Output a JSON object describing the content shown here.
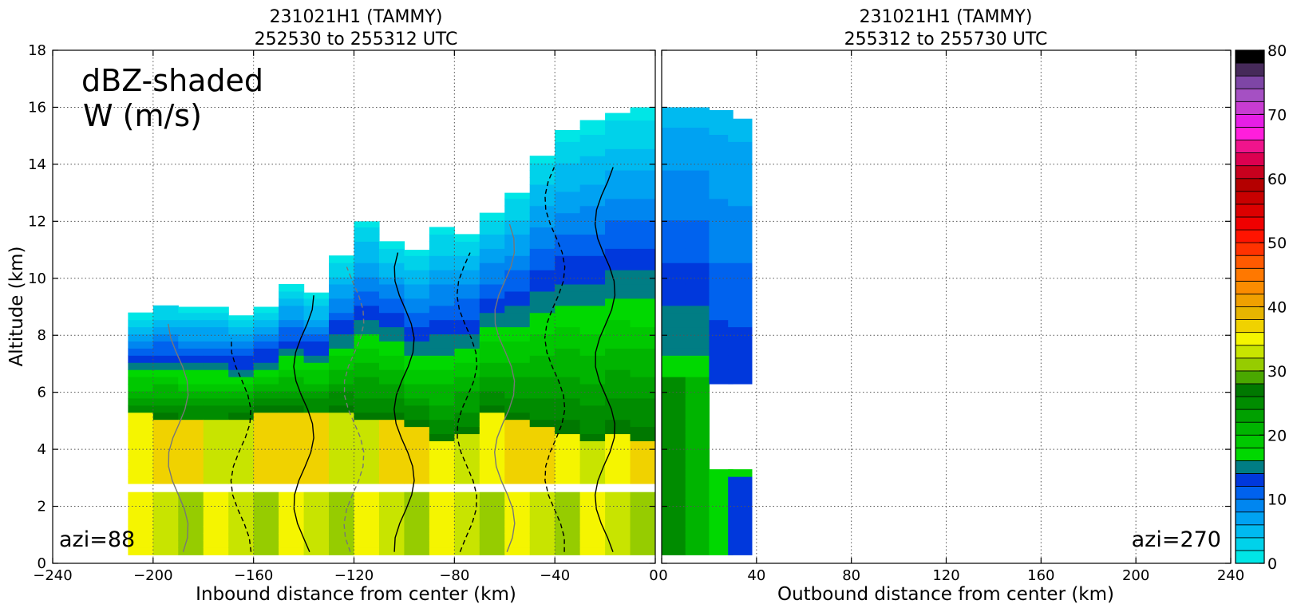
{
  "panels": [
    {
      "title_line1": "231021H1 (TAMMY)",
      "title_line2": "252530 to 255312 UTC",
      "xlabel": "Inbound distance from center (km)",
      "ylabel": "Altitude (km)",
      "azi_label": "azi=88",
      "annotation_line1": "dBZ-shaded",
      "annotation_line2": "W (m/s)"
    },
    {
      "title_line1": "231021H1 (TAMMY)",
      "title_line2": "255312 to 255730 UTC",
      "xlabel": "Outbound distance from center (km)",
      "azi_label": "azi=270"
    }
  ],
  "chart_data": [
    {
      "type": "heatmap",
      "title": "231021H1 (TAMMY) 252530 to 255312 UTC",
      "xlabel": "Inbound distance from center (km)",
      "ylabel": "Altitude (km)",
      "xlim": [
        -240,
        0
      ],
      "ylim": [
        0,
        18
      ],
      "xticks": [
        -240,
        -200,
        -160,
        -120,
        -80,
        -40,
        0
      ],
      "xtick_labels": [
        "−240",
        "−200",
        "−160",
        "−120",
        "−80",
        "−40",
        "0"
      ],
      "yticks": [
        0,
        2,
        4,
        6,
        8,
        10,
        12,
        14,
        16,
        18
      ],
      "grid": true,
      "contours": "W (m/s)",
      "contour_label": "1",
      "reflectivity_columns": [
        {
          "x": -205,
          "top": 8.8,
          "bright_top": 5.2
        },
        {
          "x": -195,
          "top": 9.1,
          "bright_top": 5.1
        },
        {
          "x": -185,
          "top": 9.0,
          "bright_top": 5.0
        },
        {
          "x": -175,
          "top": 9.0,
          "bright_top": 5.0
        },
        {
          "x": -165,
          "top": 8.7,
          "bright_top": 5.1
        },
        {
          "x": -155,
          "top": 9.0,
          "bright_top": 5.3
        },
        {
          "x": -145,
          "top": 9.8,
          "bright_top": 5.3
        },
        {
          "x": -135,
          "top": 9.5,
          "bright_top": 5.2
        },
        {
          "x": -125,
          "top": 10.8,
          "bright_top": 5.3
        },
        {
          "x": -115,
          "top": 12.0,
          "bright_top": 5.1
        },
        {
          "x": -105,
          "top": 11.4,
          "bright_top": 5.0
        },
        {
          "x": -95,
          "top": 11.0,
          "bright_top": 4.7
        },
        {
          "x": -85,
          "top": 11.8,
          "bright_top": 4.2
        },
        {
          "x": -75,
          "top": 11.6,
          "bright_top": 4.6
        },
        {
          "x": -65,
          "top": 12.4,
          "bright_top": 5.2
        },
        {
          "x": -55,
          "top": 13.0,
          "bright_top": 5.0
        },
        {
          "x": -45,
          "top": 14.3,
          "bright_top": 4.8
        },
        {
          "x": -35,
          "top": 15.2,
          "bright_top": 4.6
        },
        {
          "x": -25,
          "top": 15.6,
          "bright_top": 4.2
        },
        {
          "x": -15,
          "top": 15.9,
          "bright_top": 4.5
        },
        {
          "x": -5,
          "top": 16.0,
          "bright_top": 4.4
        }
      ],
      "data_gap_altitude_km": [
        2.5,
        2.75
      ],
      "echo_bottom_upper_km": 2.75,
      "echo_top_lower_km": 2.5
    },
    {
      "type": "heatmap",
      "title": "231021H1 (TAMMY) 255312 to 255730 UTC",
      "xlabel": "Outbound distance from center (km)",
      "xlim": [
        0,
        240
      ],
      "ylim": [
        0,
        18
      ],
      "xticks": [
        0,
        40,
        80,
        120,
        160,
        200,
        240
      ],
      "xtick_labels": [
        "0",
        "40",
        "80",
        "120",
        "160",
        "200",
        "240"
      ],
      "grid": true,
      "reflectivity_columns": [
        {
          "x": 5,
          "top": 16.0
        },
        {
          "x": 15,
          "top": 16.0
        },
        {
          "x": 25,
          "top": 15.9
        },
        {
          "x": 33,
          "top": 15.6
        }
      ]
    },
    {
      "type": "colorbar",
      "label": "dBZ",
      "range": [
        0,
        80
      ],
      "ticks": [
        0,
        10,
        20,
        30,
        40,
        50,
        60,
        70,
        80
      ],
      "bins": [
        {
          "lo": 0,
          "hi": 2,
          "color": "#00e6e6"
        },
        {
          "lo": 2,
          "hi": 4,
          "color": "#00d2ea"
        },
        {
          "lo": 4,
          "hi": 6,
          "color": "#00baf0"
        },
        {
          "lo": 6,
          "hi": 8,
          "color": "#00a2f2"
        },
        {
          "lo": 8,
          "hi": 10,
          "color": "#0086f0"
        },
        {
          "lo": 10,
          "hi": 12,
          "color": "#0062ee"
        },
        {
          "lo": 12,
          "hi": 14,
          "color": "#0038dc"
        },
        {
          "lo": 14,
          "hi": 16,
          "color": "#007d84"
        },
        {
          "lo": 16,
          "hi": 18,
          "color": "#00d800"
        },
        {
          "lo": 18,
          "hi": 20,
          "color": "#00c800"
        },
        {
          "lo": 20,
          "hi": 22,
          "color": "#00b400"
        },
        {
          "lo": 22,
          "hi": 24,
          "color": "#00a000"
        },
        {
          "lo": 24,
          "hi": 26,
          "color": "#008c00"
        },
        {
          "lo": 26,
          "hi": 28,
          "color": "#007800"
        },
        {
          "lo": 28,
          "hi": 30,
          "color": "#4aa800"
        },
        {
          "lo": 30,
          "hi": 32,
          "color": "#96cc00"
        },
        {
          "lo": 32,
          "hi": 34,
          "color": "#c8e400"
        },
        {
          "lo": 34,
          "hi": 36,
          "color": "#f5f500"
        },
        {
          "lo": 36,
          "hi": 38,
          "color": "#f0d200"
        },
        {
          "lo": 38,
          "hi": 40,
          "color": "#e6b400"
        },
        {
          "lo": 40,
          "hi": 42,
          "color": "#f0a000"
        },
        {
          "lo": 42,
          "hi": 44,
          "color": "#fa8c00"
        },
        {
          "lo": 44,
          "hi": 46,
          "color": "#ff7800"
        },
        {
          "lo": 46,
          "hi": 48,
          "color": "#ff5a00"
        },
        {
          "lo": 48,
          "hi": 50,
          "color": "#ff3200"
        },
        {
          "lo": 50,
          "hi": 52,
          "color": "#ff1400"
        },
        {
          "lo": 52,
          "hi": 54,
          "color": "#f00000"
        },
        {
          "lo": 54,
          "hi": 56,
          "color": "#dc0000"
        },
        {
          "lo": 56,
          "hi": 58,
          "color": "#c80000"
        },
        {
          "lo": 58,
          "hi": 60,
          "color": "#b40000"
        },
        {
          "lo": 60,
          "hi": 62,
          "color": "#c8001e"
        },
        {
          "lo": 62,
          "hi": 64,
          "color": "#dc0050"
        },
        {
          "lo": 64,
          "hi": 66,
          "color": "#f0148c"
        },
        {
          "lo": 66,
          "hi": 68,
          "color": "#ff1edc"
        },
        {
          "lo": 68,
          "hi": 70,
          "color": "#e61ee6"
        },
        {
          "lo": 70,
          "hi": 72,
          "color": "#c83cd2"
        },
        {
          "lo": 72,
          "hi": 74,
          "color": "#a550c3"
        },
        {
          "lo": 74,
          "hi": 76,
          "color": "#7e46a6"
        },
        {
          "lo": 76,
          "hi": 78,
          "color": "#462a5a"
        },
        {
          "lo": 78,
          "hi": 80,
          "color": "#000000"
        }
      ]
    }
  ]
}
